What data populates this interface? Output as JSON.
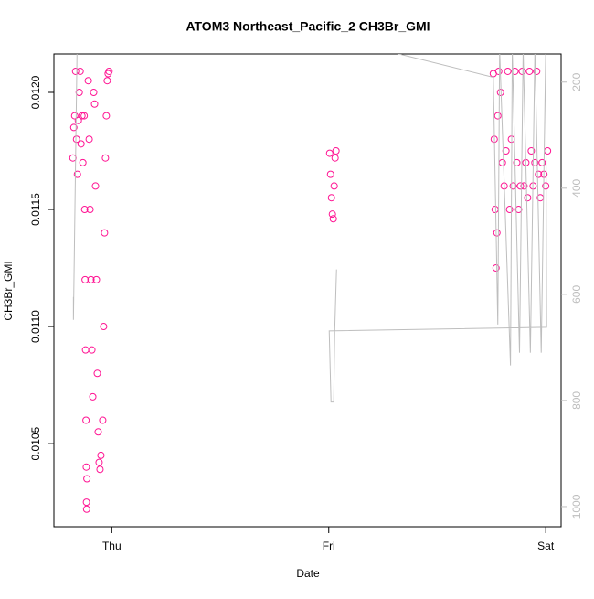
{
  "chart_data": {
    "type": "scatter",
    "title": "ATOM3 Northeast_Pacific_2 CH3Br_GMI",
    "xlabel": "Date",
    "ylabel": "CH3Br_GMI",
    "xlim": [
      -6.4,
      49.7
    ],
    "xticks": [
      {
        "value": 0,
        "label": "Thu"
      },
      {
        "value": 24,
        "label": "Fri"
      },
      {
        "value": 48,
        "label": "Sat"
      }
    ],
    "ylim": [
      0.010145,
      0.012164
    ],
    "yticks": [
      {
        "value": 0.0105,
        "label": "0.0105"
      },
      {
        "value": 0.011,
        "label": "0.0110"
      },
      {
        "value": 0.0115,
        "label": "0.0115"
      },
      {
        "value": 0.012,
        "label": "0.0120"
      }
    ],
    "y2lim": [
      1038,
      147
    ],
    "y2ticks": [
      200,
      400,
      600,
      800,
      1000
    ],
    "series": [
      {
        "type": "scatter",
        "color": "#ff1493",
        "x": [
          -4.3,
          -4.2,
          -4.1,
          -4.0,
          -3.9,
          -3.8,
          -3.7,
          -3.6,
          -3.5,
          -3.4,
          -3.3,
          -3.2,
          -3.05,
          -3.0,
          -2.95,
          -2.9,
          -2.85,
          -2.82,
          -2.8,
          -2.78,
          -2.75,
          -2.6,
          -2.5,
          -2.4,
          -2.3,
          -2.2,
          -2.1,
          -2.0,
          -1.9,
          -1.8,
          -1.7,
          -1.6,
          -1.5,
          -1.4,
          -1.3,
          -1.2,
          -1.0,
          -0.9,
          -0.8,
          -0.7,
          -0.6,
          -0.5,
          -0.4,
          -0.3,
          24.1,
          24.2,
          24.3,
          24.4,
          24.5,
          24.6,
          24.7,
          24.8,
          42.2,
          42.3,
          42.4,
          42.5,
          42.6,
          42.7,
          42.8,
          43.0,
          43.2,
          43.4,
          43.6,
          43.8,
          44.0,
          44.2,
          44.4,
          44.6,
          44.8,
          45.0,
          45.2,
          45.4,
          45.6,
          45.8,
          46.0,
          46.2,
          46.4,
          46.6,
          46.8,
          47.0,
          47.2,
          47.4,
          47.6,
          47.8,
          48.0,
          48.2
        ],
        "values": [
          0.01172,
          0.01185,
          0.0119,
          0.01209,
          0.0118,
          0.01165,
          0.01188,
          0.012,
          0.01209,
          0.01178,
          0.0119,
          0.0117,
          0.0119,
          0.0115,
          0.0112,
          0.0109,
          0.0106,
          0.0104,
          0.01025,
          0.01022,
          0.01035,
          0.01205,
          0.0118,
          0.0115,
          0.0112,
          0.0109,
          0.0107,
          0.012,
          0.01195,
          0.0116,
          0.0112,
          0.0108,
          0.01055,
          0.01042,
          0.01039,
          0.01045,
          0.0106,
          0.011,
          0.0114,
          0.01172,
          0.0119,
          0.01205,
          0.01208,
          0.01209,
          0.01174,
          0.01165,
          0.01155,
          0.01148,
          0.01146,
          0.0116,
          0.01172,
          0.01175,
          0.01208,
          0.0118,
          0.0115,
          0.01125,
          0.0114,
          0.0119,
          0.01209,
          0.012,
          0.0117,
          0.0116,
          0.01175,
          0.01209,
          0.0115,
          0.0118,
          0.0116,
          0.01209,
          0.0117,
          0.0115,
          0.0116,
          0.01209,
          0.0116,
          0.0117,
          0.01155,
          0.01209,
          0.01175,
          0.0116,
          0.0117,
          0.01209,
          0.01165,
          0.01155,
          0.0117,
          0.01165,
          0.0116,
          0.01175
        ]
      },
      {
        "type": "line",
        "color": "#bebebe",
        "axis": "y2",
        "x": [
          -4.24,
          -4.24,
          -3.84,
          -2.53,
          -2.22,
          -0.4,
          30.1,
          42.2,
          42.7,
          42.9,
          44.1,
          44.3,
          45.1,
          45.5,
          46.3,
          46.8,
          47.5,
          48.0,
          48.1,
          24.05,
          24.25,
          24.55,
          24.66,
          24.86
        ],
        "values": [
          605,
          648,
          140,
          140,
          140,
          140,
          140,
          191,
          657,
          140,
          734,
          140,
          710,
          140,
          710,
          140,
          710,
          140,
          662,
          669,
          803,
          803,
          669,
          553
        ]
      }
    ]
  }
}
